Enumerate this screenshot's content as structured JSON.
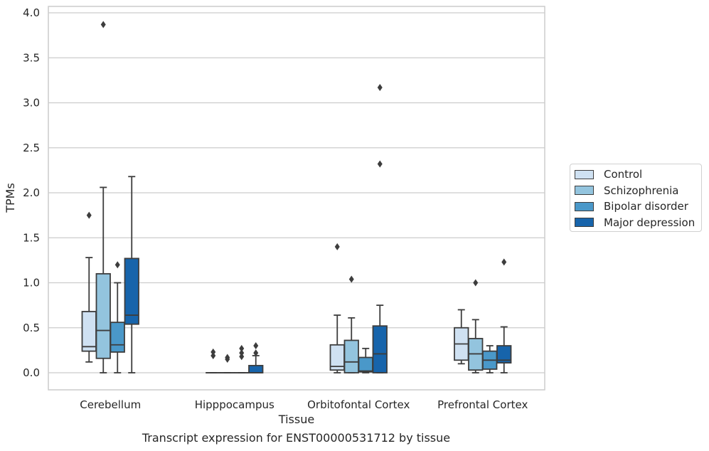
{
  "chart_data": {
    "type": "box",
    "title": "Transcript expression for ENST00000531712 by tissue",
    "xlabel": "Tissue",
    "ylabel": "TPMs",
    "ylim": [
      -0.19,
      4.07
    ],
    "yticks": [
      "0.0",
      "0.5",
      "1.0",
      "1.5",
      "2.0",
      "2.5",
      "3.0",
      "3.5",
      "4.0"
    ],
    "grid": "horizontal",
    "legend_position": "right",
    "categories": [
      "Cerebellum",
      "Hipppocampus",
      "Orbitofontal Cortex",
      "Prefrontal Cortex"
    ],
    "series": [
      {
        "name": "Control",
        "color": "#cfe1f2",
        "boxes": [
          {
            "whislo": 0.12,
            "q1": 0.24,
            "med": 0.29,
            "q3": 0.68,
            "whishi": 1.28,
            "fliers": [
              1.75
            ]
          },
          {
            "whislo": 0.0,
            "q1": 0.0,
            "med": 0.0,
            "q3": 0.0,
            "whishi": 0.0,
            "fliers": [
              0.19,
              0.23
            ]
          },
          {
            "whislo": 0.0,
            "q1": 0.03,
            "med": 0.07,
            "q3": 0.31,
            "whishi": 0.64,
            "fliers": [
              1.4
            ]
          },
          {
            "whislo": 0.1,
            "q1": 0.14,
            "med": 0.32,
            "q3": 0.5,
            "whishi": 0.7,
            "fliers": []
          }
        ]
      },
      {
        "name": "Schizophrenia",
        "color": "#93c4de",
        "boxes": [
          {
            "whislo": 0.0,
            "q1": 0.16,
            "med": 0.47,
            "q3": 1.1,
            "whishi": 2.06,
            "fliers": [
              3.87
            ]
          },
          {
            "whislo": 0.0,
            "q1": 0.0,
            "med": 0.0,
            "q3": 0.0,
            "whishi": 0.0,
            "fliers": [
              0.15,
              0.17
            ]
          },
          {
            "whislo": 0.0,
            "q1": 0.0,
            "med": 0.12,
            "q3": 0.36,
            "whishi": 0.61,
            "fliers": [
              1.04
            ]
          },
          {
            "whislo": 0.0,
            "q1": 0.03,
            "med": 0.21,
            "q3": 0.38,
            "whishi": 0.59,
            "fliers": [
              1.0
            ]
          }
        ]
      },
      {
        "name": "Bipolar disorder",
        "color": "#4a98c9",
        "boxes": [
          {
            "whislo": 0.0,
            "q1": 0.23,
            "med": 0.31,
            "q3": 0.56,
            "whishi": 1.0,
            "fliers": [
              1.2
            ]
          },
          {
            "whislo": 0.0,
            "q1": 0.0,
            "med": 0.0,
            "q3": 0.0,
            "whishi": 0.0,
            "fliers": [
              0.18,
              0.22,
              0.27
            ]
          },
          {
            "whislo": 0.0,
            "q1": 0.01,
            "med": 0.02,
            "q3": 0.17,
            "whishi": 0.27,
            "fliers": []
          },
          {
            "whislo": 0.0,
            "q1": 0.04,
            "med": 0.14,
            "q3": 0.24,
            "whishi": 0.3,
            "fliers": []
          }
        ]
      },
      {
        "name": "Major depression",
        "color": "#1764ab",
        "boxes": [
          {
            "whislo": 0.0,
            "q1": 0.54,
            "med": 0.64,
            "q3": 1.27,
            "whishi": 2.18,
            "fliers": []
          },
          {
            "whislo": 0.0,
            "q1": 0.0,
            "med": 0.0,
            "q3": 0.08,
            "whishi": 0.19,
            "fliers": [
              0.22,
              0.3
            ]
          },
          {
            "whislo": 0.0,
            "q1": 0.0,
            "med": 0.21,
            "q3": 0.52,
            "whishi": 0.75,
            "fliers": [
              2.32,
              3.17
            ]
          },
          {
            "whislo": 0.0,
            "q1": 0.11,
            "med": 0.14,
            "q3": 0.3,
            "whishi": 0.51,
            "fliers": [
              1.23
            ]
          }
        ]
      }
    ]
  }
}
